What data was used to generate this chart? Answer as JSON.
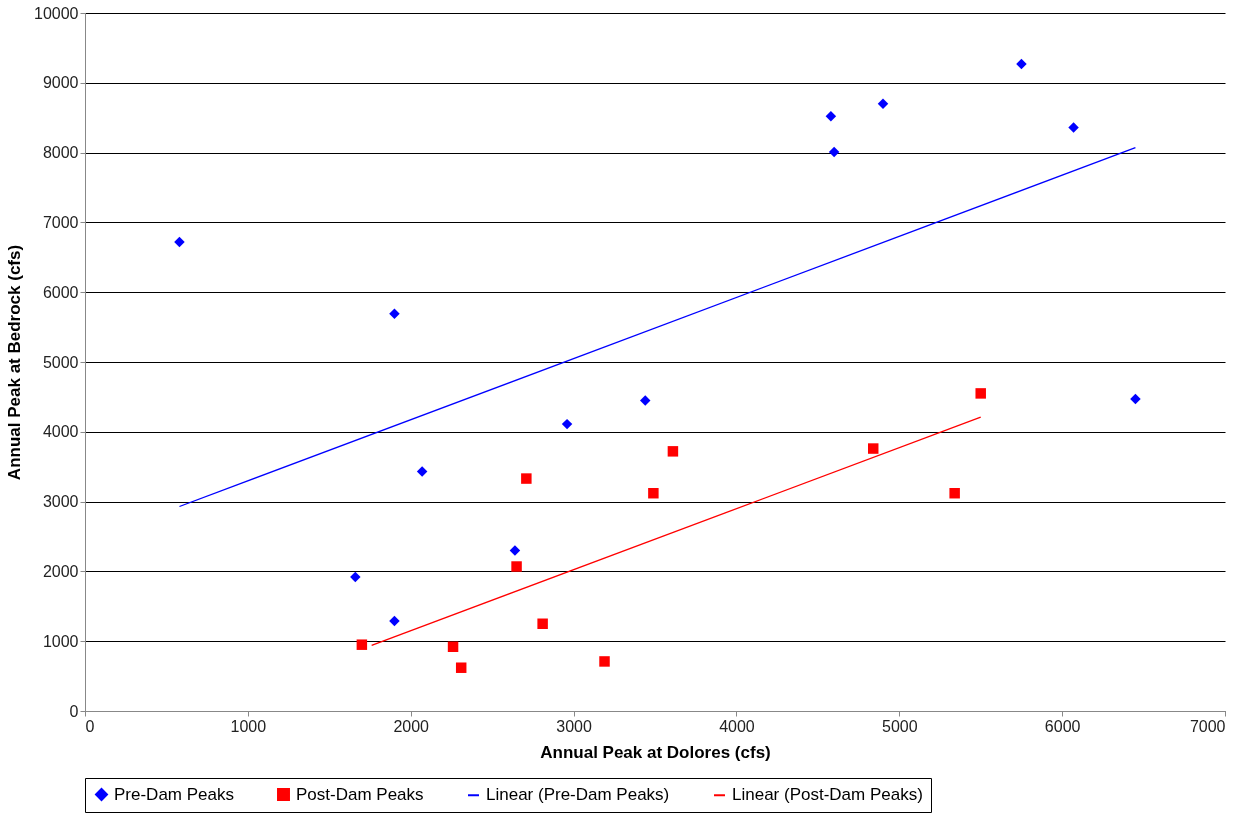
{
  "chart_data": {
    "type": "scatter",
    "xlabel": "Annual Peak at Dolores (cfs)",
    "ylabel": "Annual Peak at Bedrock (cfs)",
    "xlim": [
      0,
      7000
    ],
    "xticks": [
      0,
      1000,
      2000,
      3000,
      4000,
      5000,
      6000,
      7000
    ],
    "ylim": [
      0,
      10000
    ],
    "yticks": [
      0,
      1000,
      2000,
      3000,
      4000,
      5000,
      6000,
      7000,
      8000,
      9000,
      10000
    ],
    "grid": "y",
    "legend": "bottom",
    "series": [
      {
        "name": "Pre-Dam Peaks",
        "marker": "diamond",
        "color": "#0000ff",
        "x": [
          580,
          1900,
          2960,
          2070,
          3440,
          2640,
          1660,
          1900,
          4580,
          4600,
          4900,
          5750,
          6070,
          6450
        ],
        "values": [
          6720,
          5690,
          4110,
          3430,
          4450,
          2300,
          1920,
          1290,
          8520,
          8010,
          8700,
          9270,
          8360,
          4470
        ]
      },
      {
        "name": "Post-Dam Peaks",
        "marker": "square",
        "color": "#ff0000",
        "x": [
          1700,
          2260,
          2310,
          2650,
          2710,
          2810,
          3190,
          3490,
          3610,
          4840,
          5340,
          5500
        ],
        "values": [
          950,
          920,
          620,
          2070,
          3330,
          1250,
          710,
          3120,
          3720,
          3760,
          3120,
          4550
        ]
      },
      {
        "name": "Linear (Pre-Dam Peaks)",
        "type": "line",
        "color": "#0000ff",
        "x": [
          580,
          6450
        ],
        "values": [
          2930,
          8070
        ]
      },
      {
        "name": "Linear (Post-Dam Peaks)",
        "type": "line",
        "color": "#ff0000",
        "x": [
          1760,
          5500
        ],
        "values": [
          940,
          4210
        ]
      }
    ]
  }
}
